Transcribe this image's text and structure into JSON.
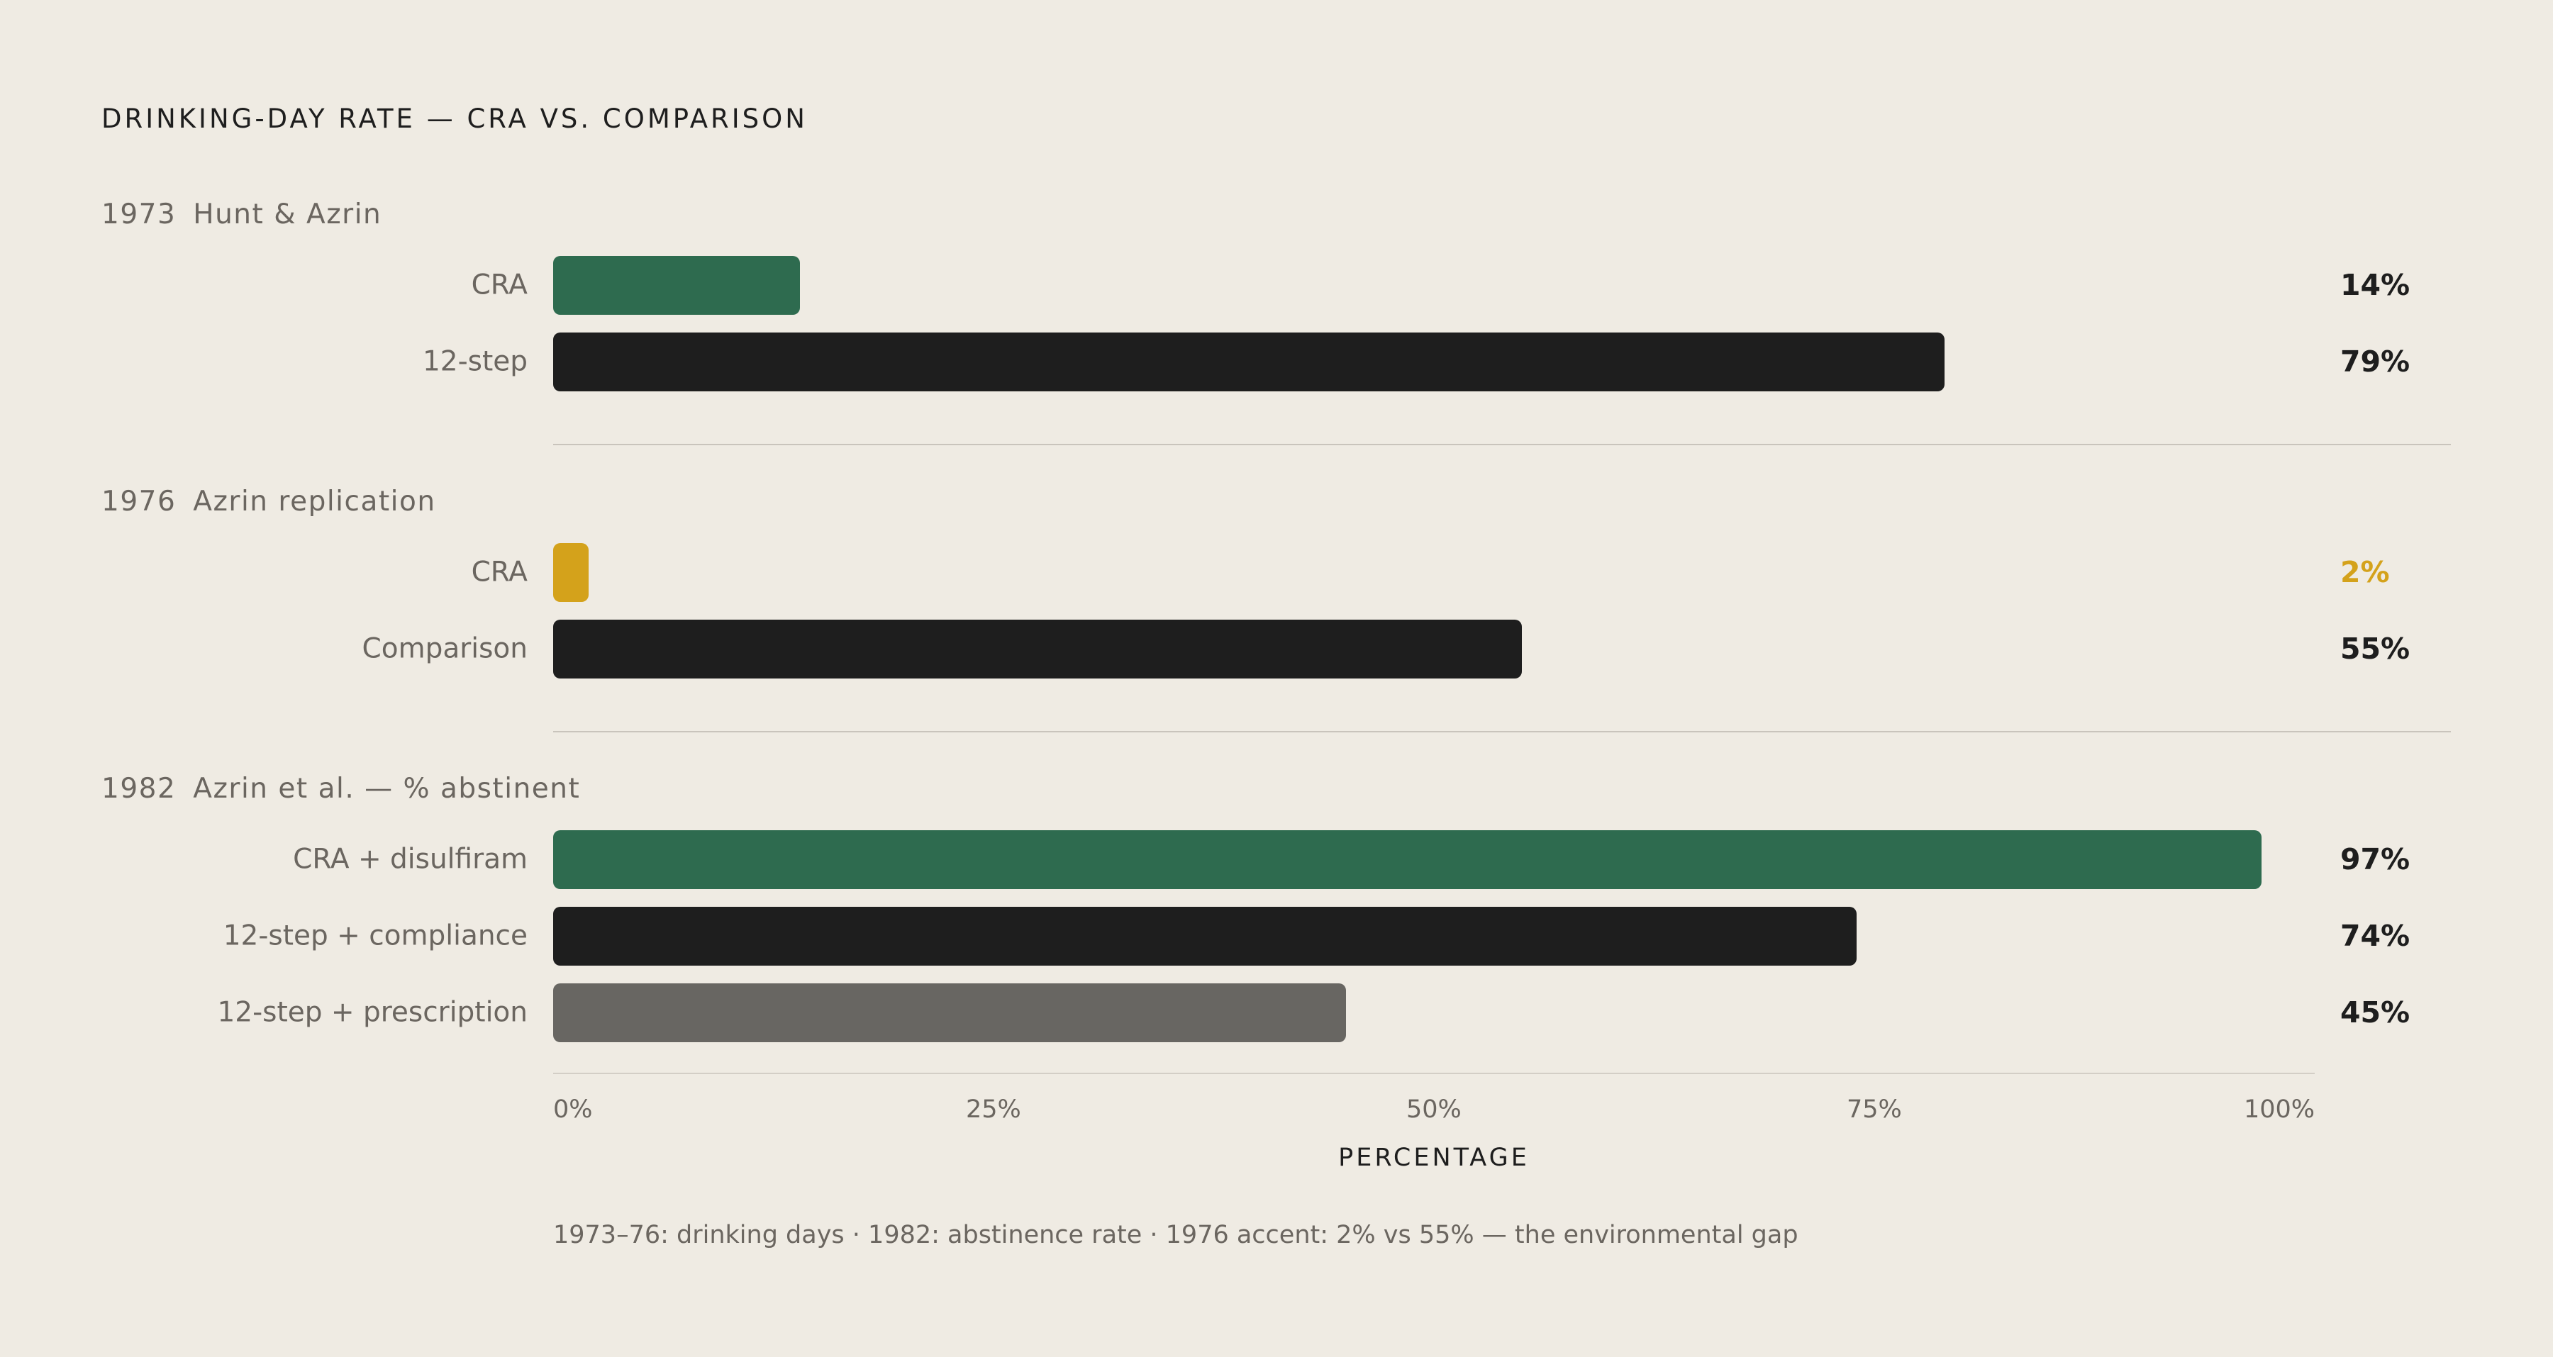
{
  "chart_data": {
    "type": "bar",
    "orientation": "horizontal",
    "title": "DRINKING-DAY RATE — CRA VS. COMPARISON",
    "xlabel": "PERCENTAGE",
    "xlim": [
      0,
      100
    ],
    "x_ticks": [
      "0%",
      "25%",
      "50%",
      "75%",
      "100%"
    ],
    "grid": false,
    "groups": [
      {
        "year": "1973",
        "label": "Hunt & Azrin",
        "bars": [
          {
            "category": "CRA",
            "value": 14,
            "value_label": "14%",
            "color": "#2e6b4f"
          },
          {
            "category": "12-step",
            "value": 79,
            "value_label": "79%",
            "color": "#1e1e1e"
          }
        ]
      },
      {
        "year": "1976",
        "label": "Azrin replication",
        "bars": [
          {
            "category": "CRA",
            "value": 2,
            "value_label": "2%",
            "color": "#d4a21b",
            "label_color": "#d4a21b"
          },
          {
            "category": "Comparison",
            "value": 55,
            "value_label": "55%",
            "color": "#1e1e1e"
          }
        ]
      },
      {
        "year": "1982",
        "label": "Azrin et al. — % abstinent",
        "bars": [
          {
            "category": "CRA + disulfiram",
            "value": 97,
            "value_label": "97%",
            "color": "#2e6b4f"
          },
          {
            "category": "12-step + compliance",
            "value": 74,
            "value_label": "74%",
            "color": "#1e1e1e"
          },
          {
            "category": "12-step + prescription",
            "value": 45,
            "value_label": "45%",
            "color": "#686662"
          }
        ]
      }
    ],
    "footnote": "1973–76: drinking days  ·  1982: abstinence rate  ·  1976 accent: 2% vs 55% — the environmental gap"
  }
}
